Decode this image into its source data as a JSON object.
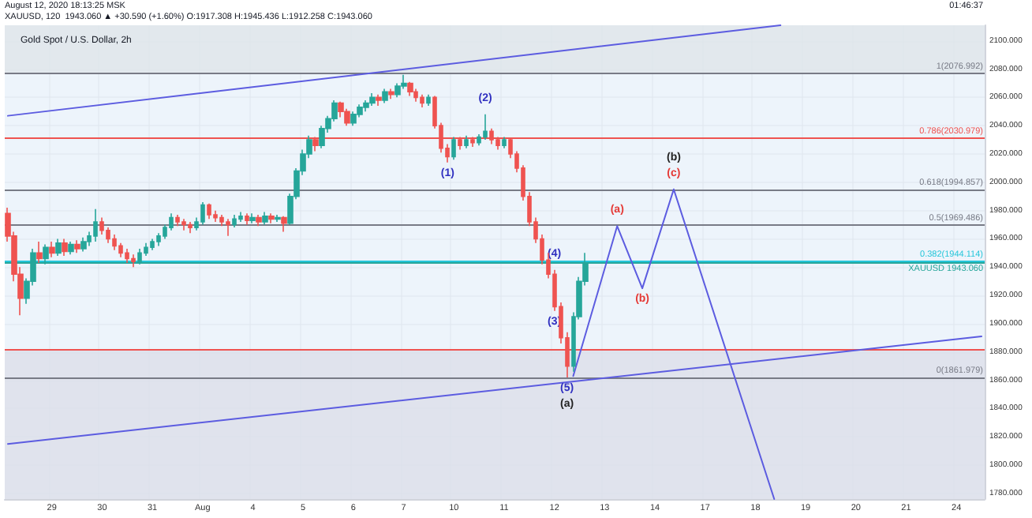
{
  "chart_data": {
    "type": "candlestick",
    "title": "Gold Spot / U.S. Dollar, 2h",
    "categories": [
      null,
      null,
      null,
      null,
      null,
      null,
      null,
      "29",
      null,
      null,
      null,
      null,
      null,
      null,
      null,
      "30",
      null,
      null,
      null,
      null,
      null,
      null,
      null,
      "31",
      null,
      null,
      null,
      null,
      null,
      null,
      null,
      "Aug",
      null,
      null,
      null,
      null,
      null,
      null,
      null,
      "4",
      null,
      null,
      null,
      null,
      null,
      null,
      null,
      "5",
      null,
      null,
      null,
      null,
      null,
      null,
      null,
      "6",
      null,
      null,
      null,
      null,
      null,
      null,
      null,
      "7",
      null,
      null,
      null,
      null,
      null,
      null,
      null,
      "10",
      null,
      null,
      null,
      null,
      null,
      null,
      null,
      "11",
      null,
      null,
      null,
      null,
      null,
      null,
      null,
      "12",
      null,
      null,
      null,
      null,
      null,
      null,
      null,
      "13",
      null,
      null,
      null,
      null,
      null,
      null,
      null,
      "14",
      null,
      null,
      null,
      null,
      null,
      null,
      null,
      "17",
      null,
      null,
      null,
      null,
      null,
      null,
      null,
      "18",
      null,
      null,
      null,
      null,
      null,
      null,
      null,
      "19",
      null,
      null,
      null,
      null,
      null,
      null,
      null,
      "20",
      null,
      null,
      null,
      null,
      null,
      null,
      null,
      "21",
      null,
      null,
      null,
      null,
      null,
      null,
      null,
      "24",
      null,
      null,
      null,
      null
    ],
    "ohlc": [
      [
        1978,
        1982,
        1958,
        1962
      ],
      [
        1962,
        1965,
        1930,
        1935
      ],
      [
        1935,
        1940,
        1906,
        1918
      ],
      [
        1918,
        1932,
        1914,
        1930
      ],
      [
        1930,
        1953,
        1927,
        1950
      ],
      [
        1950,
        1958,
        1943,
        1946
      ],
      [
        1946,
        1956,
        1942,
        1954
      ],
      [
        1954,
        1958,
        1947,
        1950
      ],
      [
        1950,
        1960,
        1948,
        1957
      ],
      [
        1957,
        1960,
        1948,
        1951
      ],
      [
        1951,
        1958,
        1949,
        1956
      ],
      [
        1956,
        1959,
        1950,
        1953
      ],
      [
        1953,
        1961,
        1951,
        1958
      ],
      [
        1958,
        1965,
        1955,
        1962
      ],
      [
        1962,
        1981,
        1958,
        1972
      ],
      [
        1972,
        1975,
        1963,
        1966
      ],
      [
        1966,
        1968,
        1957,
        1960
      ],
      [
        1960,
        1963,
        1952,
        1955
      ],
      [
        1955,
        1957,
        1947,
        1950
      ],
      [
        1950,
        1953,
        1943,
        1946
      ],
      [
        1946,
        1949,
        1940,
        1944
      ],
      [
        1944,
        1953,
        1942,
        1950
      ],
      [
        1950,
        1957,
        1948,
        1954
      ],
      [
        1954,
        1960,
        1952,
        1958
      ],
      [
        1958,
        1964,
        1955,
        1962
      ],
      [
        1962,
        1970,
        1960,
        1968
      ],
      [
        1968,
        1978,
        1966,
        1975
      ],
      [
        1975,
        1977,
        1969,
        1972
      ],
      [
        1972,
        1974,
        1966,
        1970
      ],
      [
        1970,
        1972,
        1964,
        1968
      ],
      [
        1968,
        1975,
        1966,
        1972
      ],
      [
        1972,
        1986,
        1970,
        1984
      ],
      [
        1984,
        1985,
        1974,
        1977
      ],
      [
        1977,
        1980,
        1972,
        1975
      ],
      [
        1975,
        1977,
        1969,
        1972
      ],
      [
        1972,
        1974,
        1962,
        1970
      ],
      [
        1970,
        1977,
        1968,
        1974
      ],
      [
        1974,
        1979,
        1972,
        1976
      ],
      [
        1976,
        1978,
        1970,
        1973
      ],
      [
        1973,
        1978,
        1971,
        1975
      ],
      [
        1975,
        1977,
        1969,
        1972
      ],
      [
        1972,
        1979,
        1970,
        1976
      ],
      [
        1976,
        1978,
        1971,
        1974
      ],
      [
        1974,
        1977,
        1972,
        1975
      ],
      [
        1975,
        1976,
        1965,
        1971
      ],
      [
        1971,
        1992,
        1970,
        1990
      ],
      [
        1990,
        2010,
        1988,
        2008
      ],
      [
        2008,
        2023,
        2005,
        2020
      ],
      [
        2020,
        2033,
        2017,
        2030
      ],
      [
        2030,
        2032,
        2022,
        2026
      ],
      [
        2026,
        2040,
        2024,
        2038
      ],
      [
        2038,
        2047,
        2035,
        2045
      ],
      [
        2045,
        2058,
        2043,
        2056
      ],
      [
        2056,
        2057,
        2046,
        2050
      ],
      [
        2050,
        2052,
        2040,
        2042
      ],
      [
        2042,
        2050,
        2040,
        2048
      ],
      [
        2048,
        2055,
        2046,
        2053
      ],
      [
        2053,
        2058,
        2050,
        2056
      ],
      [
        2056,
        2063,
        2054,
        2060
      ],
      [
        2060,
        2062,
        2054,
        2058
      ],
      [
        2058,
        2066,
        2056,
        2064
      ],
      [
        2064,
        2066,
        2059,
        2062
      ],
      [
        2062,
        2070,
        2060,
        2068
      ],
      [
        2068,
        2076,
        2066,
        2070
      ],
      [
        2070,
        2071,
        2061,
        2064
      ],
      [
        2064,
        2066,
        2057,
        2060
      ],
      [
        2060,
        2062,
        2053,
        2056
      ],
      [
        2056,
        2062,
        2054,
        2060
      ],
      [
        2060,
        2061,
        2038,
        2040
      ],
      [
        2040,
        2042,
        2021,
        2024
      ],
      [
        2024,
        2027,
        2014,
        2018
      ],
      [
        2018,
        2032,
        2016,
        2030
      ],
      [
        2030,
        2032,
        2023,
        2026
      ],
      [
        2026,
        2033,
        2024,
        2030
      ],
      [
        2030,
        2032,
        2025,
        2028
      ],
      [
        2028,
        2034,
        2026,
        2032
      ],
      [
        2032,
        2048,
        2030,
        2036
      ],
      [
        2036,
        2038,
        2027,
        2030
      ],
      [
        2030,
        2032,
        2023,
        2026
      ],
      [
        2026,
        2032,
        2024,
        2030
      ],
      [
        2030,
        2031,
        2017,
        2020
      ],
      [
        2020,
        2022,
        2007,
        2010
      ],
      [
        2010,
        2012,
        1987,
        1990
      ],
      [
        1990,
        1993,
        1969,
        1972
      ],
      [
        1972,
        1975,
        1957,
        1960
      ],
      [
        1960,
        1963,
        1942,
        1945
      ],
      [
        1945,
        1950,
        1932,
        1935
      ],
      [
        1935,
        1938,
        1909,
        1912
      ],
      [
        1912,
        1915,
        1886,
        1890
      ],
      [
        1890,
        1894,
        1862,
        1870
      ],
      [
        1870,
        1908,
        1866,
        1905
      ],
      [
        1905,
        1933,
        1903,
        1930
      ],
      [
        1930,
        1950,
        1927,
        1943
      ],
      null,
      null,
      null,
      null,
      null,
      null,
      null,
      null,
      null,
      null,
      null,
      null,
      null,
      null,
      null,
      null,
      null,
      null,
      null,
      null,
      null,
      null,
      null,
      null,
      null,
      null,
      null,
      null,
      null,
      null,
      null,
      null,
      null,
      null,
      null,
      null,
      null,
      null,
      null,
      null,
      null,
      null,
      null,
      null,
      null,
      null,
      null,
      null,
      null,
      null,
      null,
      null,
      null,
      null,
      null,
      null,
      null,
      null,
      null,
      null,
      null,
      null,
      null
    ],
    "series": [
      {
        "type": "line",
        "color": "#5c5ce0",
        "values": [
          2047,
          null,
          null,
          null,
          null,
          null,
          null,
          null,
          null,
          null,
          null,
          null,
          null,
          null,
          null,
          null,
          null,
          null,
          null,
          null,
          null,
          null,
          null,
          null,
          null,
          null,
          null,
          null,
          null,
          null,
          null,
          null,
          null,
          null,
          null,
          null,
          null,
          null,
          null,
          null,
          null,
          null,
          null,
          null,
          null,
          null,
          null,
          null,
          null,
          null,
          null,
          null,
          null,
          null,
          null,
          null,
          null,
          null,
          null,
          null,
          null,
          null,
          null,
          null,
          null,
          null,
          null,
          null,
          null,
          null,
          null,
          null,
          null,
          null,
          null,
          null,
          null,
          null,
          null,
          null,
          null,
          null,
          null,
          null,
          null,
          null,
          null,
          null,
          null,
          null,
          null,
          null,
          null,
          null,
          null,
          null,
          null,
          null,
          null,
          null,
          null,
          null,
          null,
          null,
          null,
          null,
          null,
          null,
          null,
          null,
          null,
          null,
          null,
          null,
          null,
          null,
          null,
          null,
          null,
          null,
          null,
          null,
          null,
          2111,
          null,
          null,
          null,
          null,
          null,
          null,
          null,
          null,
          null,
          null,
          null,
          null,
          null,
          null,
          null,
          null,
          null,
          null,
          null,
          null,
          null,
          null,
          null,
          null,
          null,
          null,
          null,
          null,
          null,
          null,
          null,
          null
        ]
      },
      {
        "type": "line",
        "color": "#5c5ce0",
        "values": [
          1815,
          null,
          null,
          null,
          null,
          null,
          null,
          null,
          null,
          null,
          null,
          null,
          null,
          null,
          null,
          null,
          null,
          null,
          null,
          null,
          null,
          null,
          null,
          null,
          null,
          null,
          null,
          null,
          null,
          null,
          null,
          null,
          null,
          null,
          null,
          null,
          null,
          null,
          null,
          null,
          null,
          null,
          null,
          null,
          null,
          null,
          null,
          null,
          null,
          null,
          null,
          null,
          null,
          null,
          null,
          null,
          null,
          null,
          null,
          null,
          null,
          null,
          null,
          null,
          null,
          null,
          null,
          null,
          null,
          null,
          null,
          null,
          null,
          null,
          null,
          null,
          null,
          null,
          null,
          null,
          null,
          null,
          null,
          null,
          null,
          null,
          null,
          null,
          null,
          null,
          null,
          null,
          null,
          null,
          null,
          null,
          null,
          null,
          null,
          null,
          null,
          null,
          null,
          null,
          null,
          null,
          null,
          null,
          null,
          null,
          null,
          null,
          null,
          null,
          null,
          null,
          null,
          null,
          null,
          null,
          null,
          null,
          null,
          null,
          null,
          null,
          null,
          null,
          null,
          null,
          null,
          null,
          null,
          null,
          null,
          null,
          null,
          null,
          null,
          null,
          null,
          null,
          null,
          null,
          null,
          null,
          null,
          null,
          null,
          null,
          null,
          null,
          null,
          null,
          null,
          1891
        ]
      },
      {
        "type": "line",
        "color": "#5c5ce0",
        "values": [
          null,
          null,
          null,
          null,
          null,
          null,
          null,
          null,
          null,
          null,
          null,
          null,
          null,
          null,
          null,
          null,
          null,
          null,
          null,
          null,
          null,
          null,
          null,
          null,
          null,
          null,
          null,
          null,
          null,
          null,
          null,
          null,
          null,
          null,
          null,
          null,
          null,
          null,
          null,
          null,
          null,
          null,
          null,
          null,
          null,
          null,
          null,
          null,
          null,
          null,
          null,
          null,
          null,
          null,
          null,
          null,
          null,
          null,
          null,
          null,
          null,
          null,
          null,
          null,
          null,
          null,
          null,
          null,
          null,
          null,
          null,
          null,
          null,
          null,
          null,
          null,
          null,
          null,
          null,
          null,
          null,
          null,
          null,
          null,
          null,
          null,
          null,
          null,
          null,
          null,
          1863,
          null,
          null,
          null,
          null,
          null,
          null,
          1969,
          null,
          null,
          null,
          1925,
          null,
          null,
          null,
          null,
          1995,
          null,
          null,
          null,
          null,
          null,
          null,
          null,
          null,
          null,
          null,
          null,
          null,
          null,
          null,
          null,
          1776,
          null,
          null,
          null,
          null,
          null,
          null,
          null,
          null,
          null,
          null,
          null,
          null,
          null,
          null,
          null,
          null,
          null,
          null,
          null,
          null,
          null,
          null,
          null,
          null,
          null,
          null,
          null,
          null,
          null,
          null,
          null,
          null,
          null
        ]
      }
    ],
    "ylim": [
      1776,
      2111
    ],
    "yticks": [
      {
        "value": 1780,
        "label": "1780.000"
      },
      {
        "value": 1800,
        "label": "1800.000"
      },
      {
        "value": 1820,
        "label": "1820.000"
      },
      {
        "value": 1840,
        "label": "1840.000"
      },
      {
        "value": 1860,
        "label": "1860.000"
      },
      {
        "value": 1880,
        "label": "1880.000"
      },
      {
        "value": 1900,
        "label": "1900.000"
      },
      {
        "value": 1920,
        "label": "1920.000"
      },
      {
        "value": 1940,
        "label": "1940.000"
      },
      {
        "value": 1960,
        "label": "1960.000"
      },
      {
        "value": 1980,
        "label": "1980.000"
      },
      {
        "value": 2000,
        "label": "2000.000"
      },
      {
        "value": 2020,
        "label": "2020.000"
      },
      {
        "value": 2040,
        "label": "2040.000"
      },
      {
        "value": 2060,
        "label": "2060.000"
      },
      {
        "value": 2080,
        "label": "2080.000"
      },
      {
        "value": 2100,
        "label": "2100.000"
      }
    ],
    "grid": true,
    "marker": "none",
    "line_style": "solid",
    "ref_lines": [
      {
        "axis": "y",
        "value": 2076.992,
        "label": "1(2076.992)",
        "color": "#787b86"
      },
      {
        "axis": "y",
        "value": 2030.979,
        "label": "0.786(2030.979)",
        "color": "#ef5350"
      },
      {
        "axis": "y",
        "value": 1994.857,
        "label": "0.618(1994.857)",
        "color": "#787b86"
      },
      {
        "axis": "y",
        "value": 1969.486,
        "label": "0.5(1969.486)",
        "color": "#787b86"
      },
      {
        "axis": "y",
        "value": 1944.114,
        "label": "0.382(1944.114)",
        "color": "#26c6da"
      },
      {
        "axis": "y",
        "value": 1861.979,
        "label": "0(1861.979)",
        "color": "#787b86"
      },
      {
        "axis": "y",
        "value": 1881.9,
        "color": "#ef5350"
      },
      {
        "axis": "y",
        "value": 1943.06,
        "label": "XAUUSD 1943.060",
        "color": "#26a69a"
      }
    ],
    "bands": [
      {
        "axis": "y",
        "from": 1776,
        "to": 1881.9,
        "color": "#dcdfea"
      },
      {
        "axis": "y",
        "from": 2076.992,
        "to": 2111,
        "color": "#dfe5ea"
      }
    ],
    "annotations": [
      "August 12, 2020 18:13:25 MSK",
      "XAUUSD, 120  1943.060 ▲ +30.590 (+1.60%) O:1917.308 H:1945.436 L:1912.258 C:1943.060",
      "01:46:37",
      {
        "text": "(1)",
        "y": 2014
      },
      {
        "text": "(2)",
        "y": 2048
      },
      {
        "text": "(3)",
        "y": 1909
      },
      {
        "text": "(4)",
        "y": 1938
      },
      {
        "text": "(5)",
        "y": 1862
      },
      {
        "text": "(a)",
        "y": 1862
      },
      {
        "text": "(a)",
        "y": 1969
      },
      {
        "text": "(b)",
        "y": 1925
      },
      {
        "text": "(c)",
        "y": 1995
      },
      {
        "text": "(b)",
        "y": 1995
      }
    ]
  }
}
